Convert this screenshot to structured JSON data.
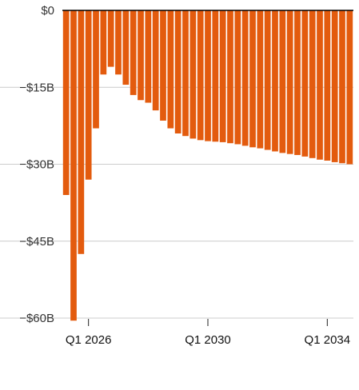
{
  "chart_data": {
    "type": "bar",
    "title": "",
    "xlabel": "",
    "ylabel": "",
    "ylim": [
      -60,
      0
    ],
    "grid": true,
    "bar_color": "#E35B0E",
    "grid_color": "#CCCCCC",
    "zero_line_color": "#000000",
    "y_ticks": [
      {
        "value": 0,
        "label": "$0"
      },
      {
        "value": -15,
        "label": "−$15B"
      },
      {
        "value": -30,
        "label": "−$30B"
      },
      {
        "value": -45,
        "label": "−$45B"
      },
      {
        "value": -60,
        "label": "−$60B"
      }
    ],
    "x_ticks": [
      {
        "index": 3,
        "label": "Q1 2026"
      },
      {
        "index": 19,
        "label": "Q1 2030"
      },
      {
        "index": 35,
        "label": "Q1 2034"
      }
    ],
    "series": [
      {
        "values": [
          -36,
          -60.5,
          -47.5,
          -33,
          -23,
          -12.5,
          -11,
          -12.5,
          -14.5,
          -16.5,
          -17.5,
          -18,
          -19.5,
          -21.5,
          -23,
          -24,
          -24.5,
          -25,
          -25.3,
          -25.5,
          -25.6,
          -25.7,
          -25.9,
          -26.1,
          -26.4,
          -26.7,
          -26.9,
          -27.2,
          -27.5,
          -27.8,
          -28,
          -28.2,
          -28.5,
          -28.8,
          -29.1,
          -29.3,
          -29.6,
          -29.8,
          -30
        ]
      }
    ]
  }
}
